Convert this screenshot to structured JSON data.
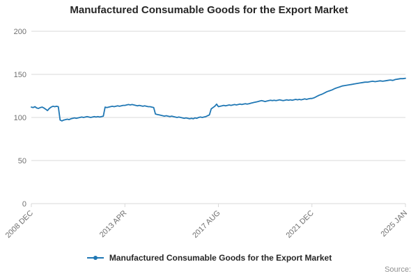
{
  "colors": {
    "line": "#1f77b4",
    "grid": "#d9d9d9",
    "axis_text": "#707070",
    "title_text": "#262626",
    "source_text": "#8f8f8f"
  },
  "chart_data": {
    "type": "line",
    "title": "Manufactured Consumable Goods for the Export Market",
    "xlabel": "",
    "ylabel": "",
    "ylim": [
      0,
      200
    ],
    "y_ticks": [
      0,
      50,
      100,
      150,
      200
    ],
    "grid": "horizontal",
    "legend_position": "bottom",
    "x_range": {
      "start": "2008 DEC",
      "end": "2025 JAN",
      "frequency": "monthly"
    },
    "x_ticks": [
      {
        "index": 0,
        "label": "2008 DEC"
      },
      {
        "index": 52,
        "label": "2013 APR"
      },
      {
        "index": 104,
        "label": "2017 AUG"
      },
      {
        "index": 156,
        "label": "2021 DEC"
      },
      {
        "index": 193,
        "label": "2025 JAN"
      }
    ],
    "series": [
      {
        "name": "Manufactured Consumable Goods for the Export Market",
        "color": "#1f77b4",
        "values": [
          112,
          111.5,
          112.5,
          111,
          110.5,
          111.5,
          112,
          111,
          109.5,
          108,
          110.5,
          112,
          113,
          112.5,
          113,
          112.5,
          97,
          96,
          97,
          97.5,
          98,
          97.5,
          98.5,
          99,
          99.5,
          99,
          99.5,
          100,
          100.5,
          100,
          100.5,
          101,
          100.5,
          100,
          100.5,
          101,
          100.5,
          101,
          100.5,
          101,
          101.5,
          112,
          111.5,
          112,
          112.5,
          113,
          112.5,
          113,
          113.5,
          113,
          113.5,
          114,
          114,
          114.5,
          115,
          114.5,
          115,
          114.5,
          114,
          113.5,
          114,
          113.5,
          113,
          113.5,
          113,
          112.5,
          112.5,
          112,
          111.5,
          104,
          103.5,
          103,
          102.5,
          102,
          101.5,
          102,
          101.5,
          101,
          101.5,
          101,
          100.5,
          100,
          100.5,
          100,
          99.5,
          99,
          99.5,
          99,
          98.5,
          99,
          98.5,
          99.5,
          99,
          100,
          100.5,
          100,
          100.5,
          101,
          102,
          103,
          110,
          111.5,
          113,
          115.5,
          112.5,
          113,
          113.5,
          114,
          113.5,
          114,
          114.5,
          114,
          114.5,
          115,
          114.5,
          115,
          115.5,
          115,
          115.5,
          116,
          115.5,
          116,
          116.5,
          117,
          117.5,
          118,
          118.5,
          119,
          119.5,
          119,
          118.5,
          119,
          119.5,
          120,
          119.5,
          120,
          119.5,
          120,
          120.5,
          120,
          119.5,
          120,
          120.5,
          120,
          120.5,
          120,
          120.5,
          121,
          120.5,
          121,
          120.5,
          121,
          121.5,
          121,
          121.5,
          122,
          122,
          123,
          124.5,
          126,
          127,
          128.5,
          130,
          131,
          132,
          133.5,
          134.5,
          135.5,
          136.5,
          137,
          137.5,
          138,
          138.5,
          139,
          139.5,
          140,
          140.5,
          141,
          141,
          141.5,
          142,
          141.5,
          142,
          142.5,
          142,
          142.5,
          143,
          143.5,
          143,
          144,
          144.5,
          145,
          145,
          145.5
        ]
      }
    ],
    "source_label": "Source:"
  }
}
